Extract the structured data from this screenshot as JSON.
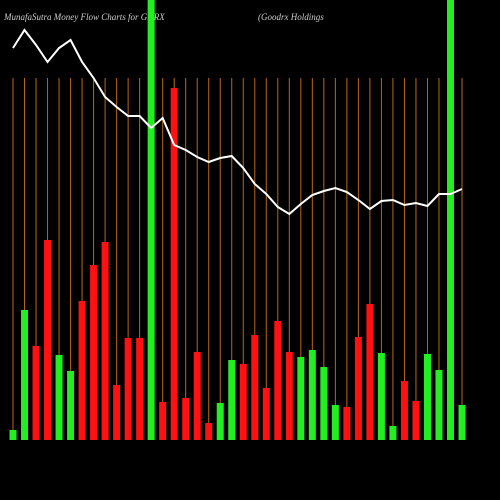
{
  "chart_data": {
    "type": "bar",
    "title": "MunafaSutra  Money Flow  Charts for GDRX",
    "subtitle": "(Goodrx Holdings",
    "categories": [
      null,
      null,
      null,
      null,
      null,
      null,
      null,
      null,
      null,
      null,
      null,
      null,
      null,
      null,
      null,
      null,
      null,
      null,
      null,
      null,
      null,
      null,
      null,
      null,
      null,
      null,
      null,
      null,
      null,
      null,
      null,
      null,
      null,
      null,
      null,
      null,
      null,
      null,
      null,
      null
    ],
    "ylim": [
      0,
      440
    ],
    "highlight": [
      12,
      38
    ],
    "series": [
      {
        "colors": [
          "#22ee22",
          "#22ee22",
          "#ff1111",
          "#ff1111",
          "#22ee22",
          "#22ee22",
          "#ff1111",
          "#ff1111",
          "#ff1111",
          "#ff1111",
          "#ff1111",
          "#ff1111",
          null,
          "#ff1111",
          "#ff1111",
          "#ff1111",
          "#ff1111",
          "#ff1111",
          "#22ee22",
          "#22ee22",
          "#ff1111",
          "#ff1111",
          "#ff1111",
          "#ff1111",
          "#ff1111",
          "#22ee22",
          "#22ee22",
          "#22ee22",
          "#22ee22",
          "#ff1111",
          "#ff1111",
          "#ff1111",
          "#22ee22",
          "#22ee22",
          "#ff1111",
          "#ff1111",
          "#22ee22",
          "#22ee22",
          null,
          "#22ee22"
        ],
        "values": [
          10,
          130,
          94,
          200,
          85,
          69,
          139,
          175,
          198,
          55,
          102,
          102,
          null,
          38,
          352,
          42,
          88,
          17,
          37,
          80,
          76,
          105,
          52,
          119,
          88,
          83,
          90,
          73,
          35,
          33,
          103,
          136,
          87,
          14,
          59,
          39,
          86,
          70,
          null,
          35
        ]
      },
      {
        "color": "#ffffff",
        "values": [
          392,
          410,
          395,
          378,
          392,
          400,
          378,
          362,
          343,
          333,
          324,
          324,
          312,
          322,
          295,
          290,
          283,
          278,
          282,
          284,
          272,
          256,
          246,
          233,
          226,
          236,
          245,
          249,
          252,
          248,
          240,
          231,
          239,
          240,
          235,
          237,
          234,
          246,
          246,
          251
        ]
      }
    ]
  }
}
